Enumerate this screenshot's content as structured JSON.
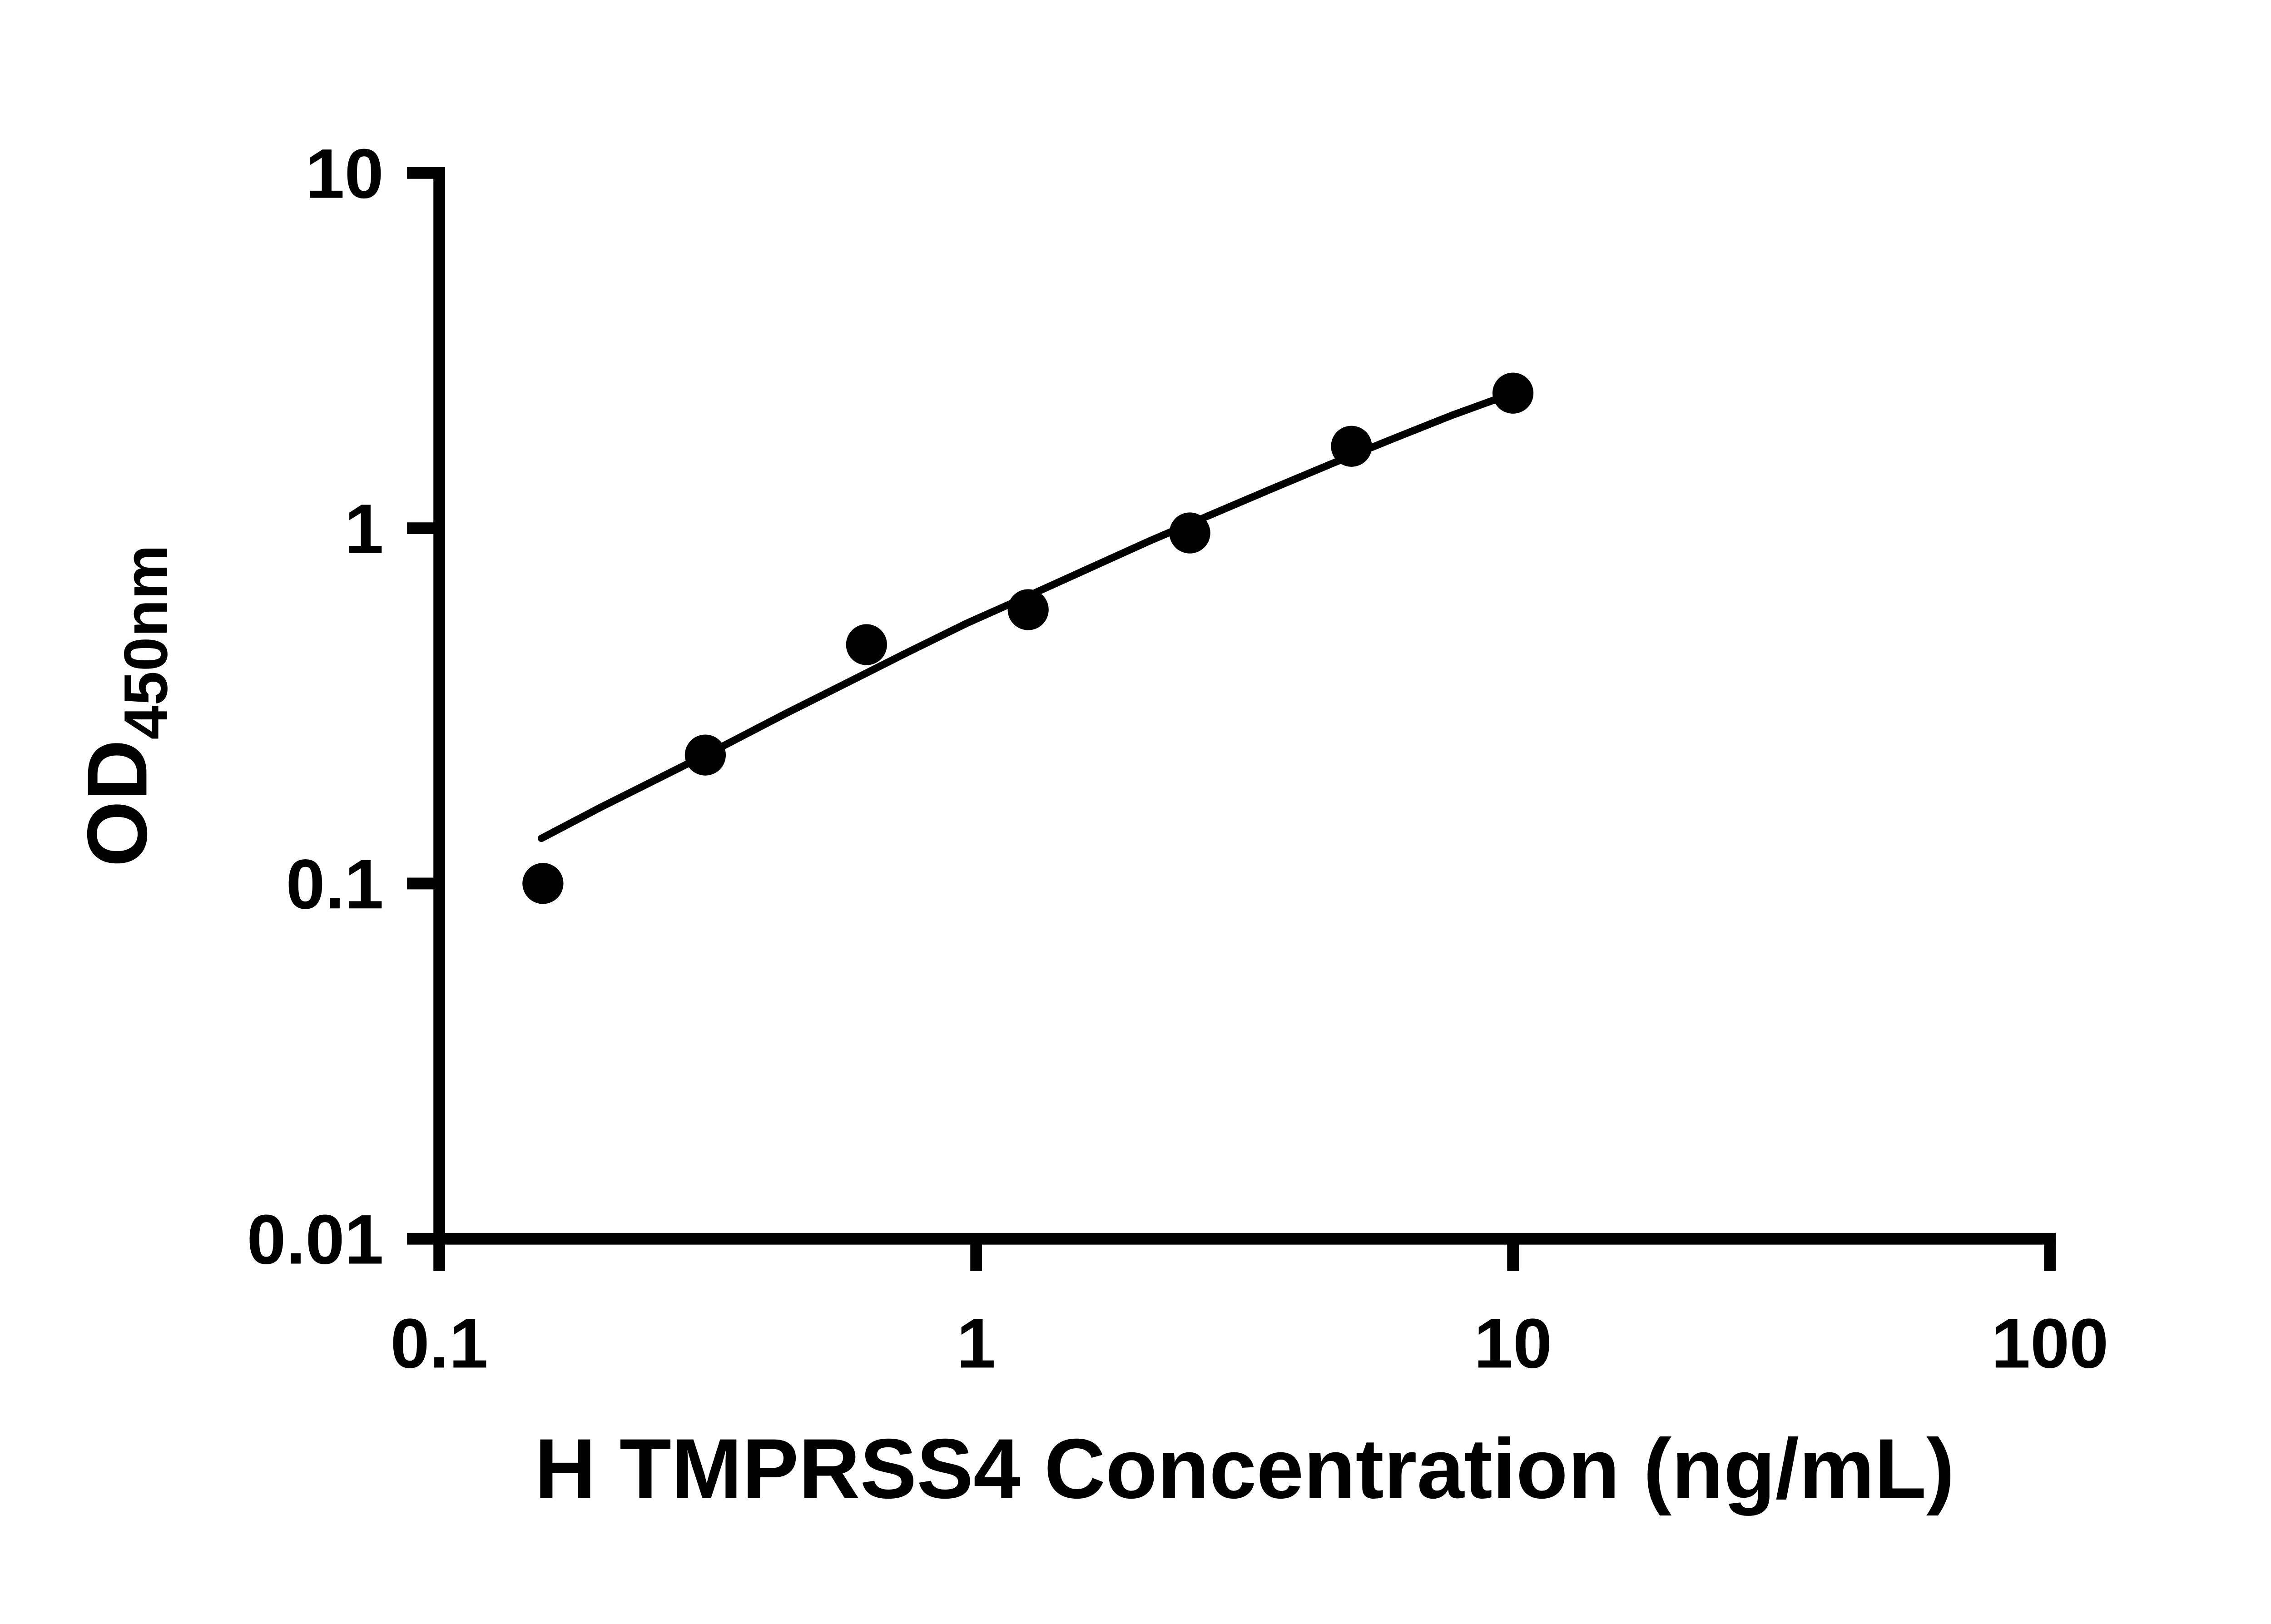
{
  "chart_data": {
    "type": "scatter",
    "title": "",
    "xlabel": "H TMPRSS4 Concentration (ng/mL)",
    "ylabel": "OD450nm",
    "ylabel_main": "OD",
    "ylabel_sub": "450nm",
    "xscale": "log",
    "yscale": "log",
    "xlim": [
      0.1,
      100
    ],
    "ylim": [
      0.01,
      10
    ],
    "grid": false,
    "legend": "none",
    "marker_color": "#000000",
    "line_color": "#000000",
    "x_ticks": [
      {
        "value": 0.1,
        "label": "0.1"
      },
      {
        "value": 1,
        "label": "1"
      },
      {
        "value": 10,
        "label": "10"
      },
      {
        "value": 100,
        "label": "100"
      }
    ],
    "y_ticks": [
      {
        "value": 0.01,
        "label": "0.01"
      },
      {
        "value": 0.1,
        "label": "0.1"
      },
      {
        "value": 1,
        "label": "1"
      },
      {
        "value": 10,
        "label": "10"
      }
    ],
    "points": {
      "x": [
        0.156,
        0.313,
        0.625,
        1.25,
        2.5,
        5,
        10
      ],
      "y": [
        0.1,
        0.23,
        0.47,
        0.59,
        0.97,
        1.7,
        2.4
      ]
    },
    "fit_curve": {
      "x": [
        0.155,
        0.2,
        0.26,
        0.34,
        0.44,
        0.57,
        0.74,
        0.96,
        1.25,
        1.62,
        2.1,
        2.73,
        3.55,
        4.6,
        6.0,
        7.7,
        10
      ],
      "y": [
        0.134,
        0.164,
        0.2,
        0.245,
        0.3,
        0.365,
        0.445,
        0.54,
        0.645,
        0.77,
        0.92,
        1.09,
        1.29,
        1.52,
        1.79,
        2.08,
        2.4
      ]
    }
  }
}
